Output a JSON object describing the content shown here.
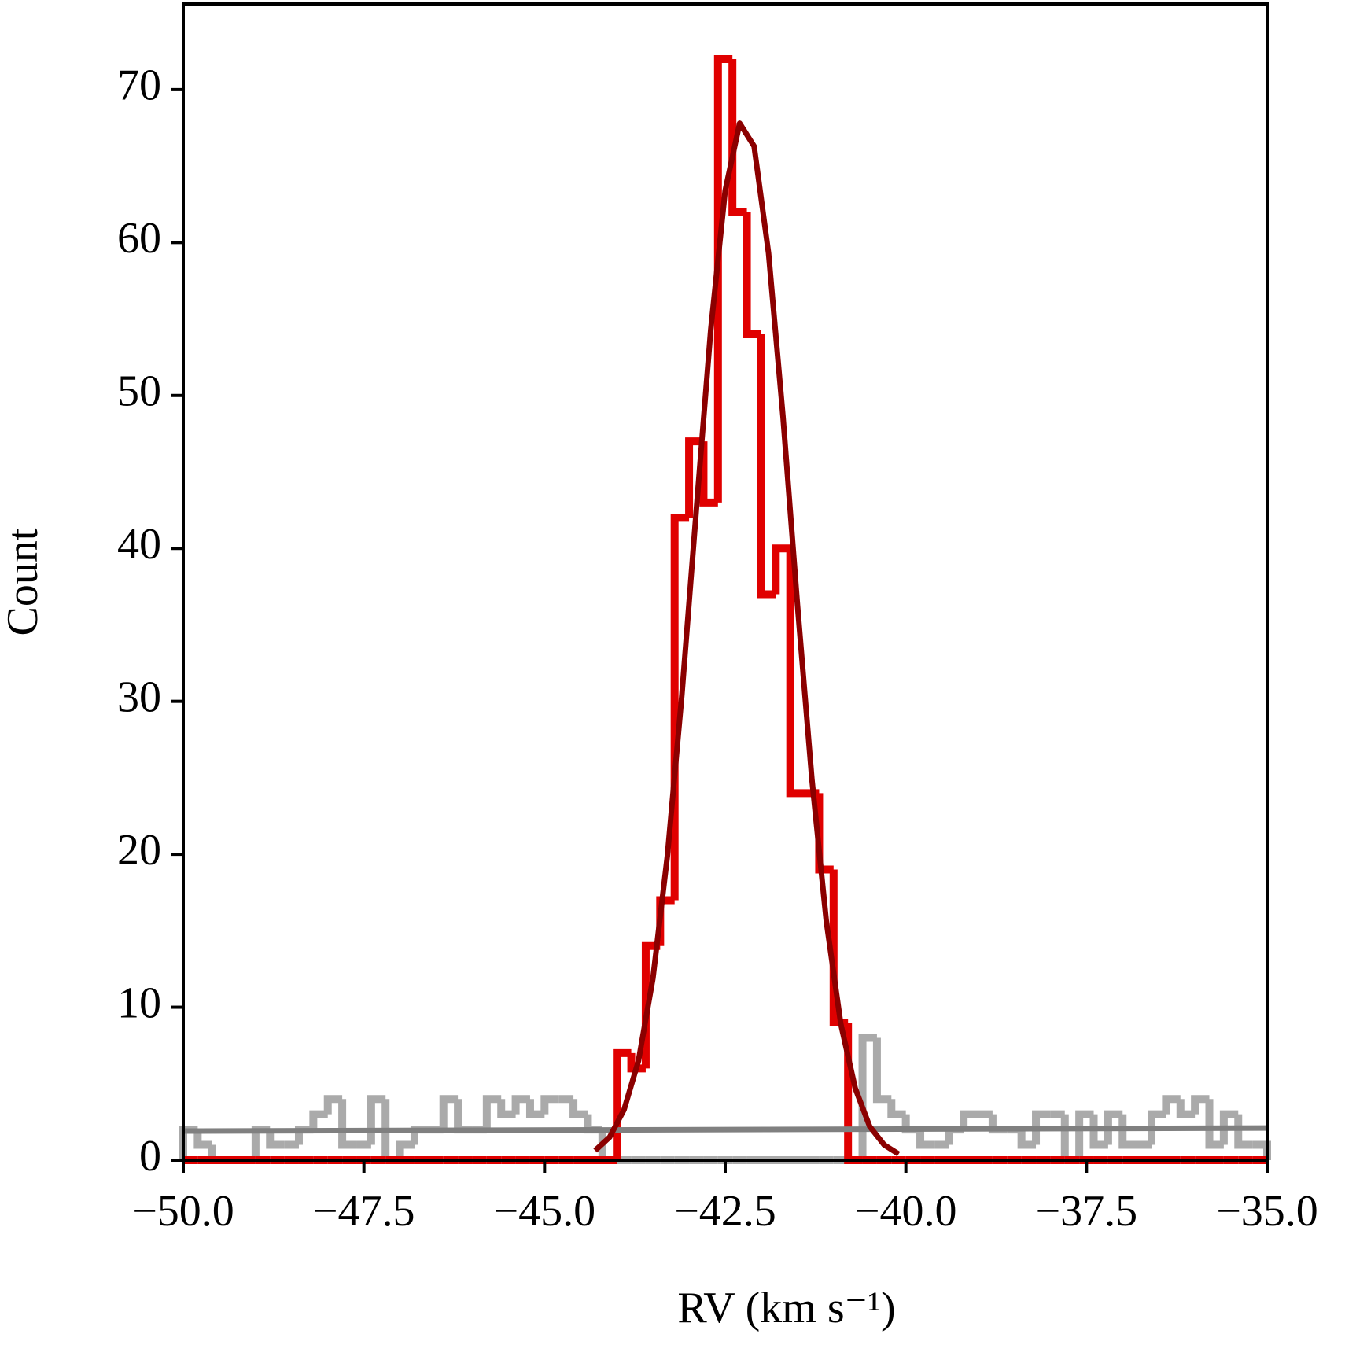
{
  "chart_data": {
    "type": "histogram",
    "xlabel": "RV (km s⁻¹)",
    "ylabel": "Count",
    "xlim": [
      -50,
      -35
    ],
    "ylim": [
      0,
      75.6
    ],
    "xticks": [
      {
        "value": -50,
        "label": "−50.0"
      },
      {
        "value": -47.5,
        "label": "−47.5"
      },
      {
        "value": -45,
        "label": "−45.0"
      },
      {
        "value": -42.5,
        "label": "−42.5"
      },
      {
        "value": -40,
        "label": "−40.0"
      },
      {
        "value": -37.5,
        "label": "−37.5"
      },
      {
        "value": -35,
        "label": "−35.0"
      }
    ],
    "yticks": [
      0,
      10,
      20,
      30,
      40,
      50,
      60,
      70
    ],
    "bins": [
      -50,
      -49.8,
      -49.6,
      -49.4,
      -49.2,
      -49,
      -48.8,
      -48.6,
      -48.4,
      -48.2,
      -48,
      -47.8,
      -47.6,
      -47.4,
      -47.2,
      -47,
      -46.8,
      -46.6,
      -46.4,
      -46.2,
      -46,
      -45.8,
      -45.6,
      -45.4,
      -45.2,
      -45,
      -44.8,
      -44.6,
      -44.4,
      -44.2,
      -44,
      -43.8,
      -43.6,
      -43.4,
      -43.2,
      -43,
      -42.8,
      -42.6,
      -42.4,
      -42.2,
      -42,
      -41.8,
      -41.6,
      -41.4,
      -41.2,
      -41,
      -40.8,
      -40.6,
      -40.4,
      -40.2,
      -40,
      -39.8,
      -39.6,
      -39.4,
      -39.2,
      -39,
      -38.8,
      -38.6,
      -38.4,
      -38.2,
      -38,
      -37.8,
      -37.6,
      -37.4,
      -37.2,
      -37,
      -36.8,
      -36.6,
      -36.4,
      -36.2,
      -36,
      -35.8,
      -35.6,
      -35.4,
      -35.2,
      -35
    ],
    "series": [
      {
        "color": "#aaaaaa",
        "values": [
          2,
          1,
          0,
          0,
          0,
          2,
          1,
          1,
          2,
          3,
          4,
          1,
          1,
          4,
          0,
          1,
          2,
          2,
          4,
          2,
          2,
          4,
          3,
          4,
          3,
          4,
          4,
          3,
          2,
          0,
          0,
          0,
          0,
          0,
          0,
          0,
          0,
          0,
          0,
          0,
          0,
          0,
          0,
          0,
          0,
          0,
          0,
          8,
          4,
          3,
          2,
          1,
          1,
          2,
          3,
          3,
          2,
          2,
          1,
          3,
          3,
          0,
          3,
          1,
          3,
          1,
          1,
          3,
          4,
          3,
          4,
          1,
          3,
          1,
          1
        ]
      },
      {
        "color": "#e00000",
        "values": [
          0,
          0,
          0,
          0,
          0,
          0,
          0,
          0,
          0,
          0,
          0,
          0,
          0,
          0,
          0,
          0,
          0,
          0,
          0,
          0,
          0,
          0,
          0,
          0,
          0,
          0,
          0,
          0,
          0,
          0,
          7,
          6,
          14,
          17,
          42,
          47,
          43,
          72,
          62,
          54,
          37,
          40,
          24,
          24,
          19,
          9,
          0,
          0,
          0,
          0,
          0,
          0,
          0,
          0,
          0,
          0,
          0,
          0,
          0,
          0,
          0,
          0,
          0,
          0,
          0,
          0,
          0,
          0,
          0,
          0,
          0,
          0,
          0,
          0,
          0
        ]
      }
    ],
    "lines": [
      {
        "color": "#808080",
        "x": [
          -50,
          -35
        ],
        "values": [
          1.9,
          2.1
        ]
      },
      {
        "color": "#8b0000",
        "x": [
          -44.3,
          -44.1,
          -43.9,
          -43.7,
          -43.5,
          -43.3,
          -43.1,
          -42.9,
          -42.7,
          -42.5,
          -42.3,
          -42.1,
          -41.9,
          -41.7,
          -41.5,
          -41.3,
          -41.1,
          -40.9,
          -40.7,
          -40.5,
          -40.3,
          -40.1
        ],
        "values": [
          0.63,
          1.5,
          3.3,
          6.5,
          11.9,
          19.9,
          30.4,
          42.5,
          54.3,
          63.4,
          67.8,
          66.3,
          59.3,
          48.6,
          36.3,
          24.9,
          15.6,
          8.9,
          4.7,
          2.2,
          1.0,
          0.4
        ]
      }
    ]
  }
}
